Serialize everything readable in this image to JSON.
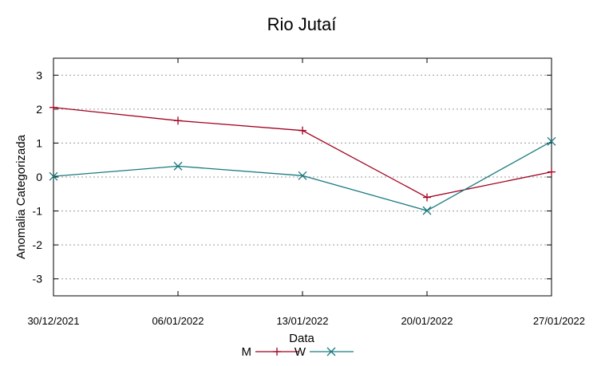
{
  "chart_data": {
    "type": "line",
    "title": "Rio Jutaí",
    "xlabel": "Data",
    "ylabel": "Anomalia Categorizada",
    "x": [
      "30/12/2021",
      "06/01/2022",
      "13/01/2022",
      "20/01/2022",
      "27/01/2022"
    ],
    "yticks": [
      "3",
      "2",
      "1",
      "0",
      "-1",
      "-2",
      "-3"
    ],
    "ylim": [
      -3.5,
      3.5
    ],
    "grid": true,
    "legend_position": "bottom-center",
    "series": [
      {
        "name": "M",
        "color": "#a0001e",
        "marker": "plus",
        "values": [
          2.05,
          1.66,
          1.37,
          -0.6,
          0.15
        ]
      },
      {
        "name": "W",
        "color": "#1a7a80",
        "marker": "x",
        "values": [
          0.02,
          0.32,
          0.04,
          -0.99,
          1.05
        ]
      }
    ]
  }
}
